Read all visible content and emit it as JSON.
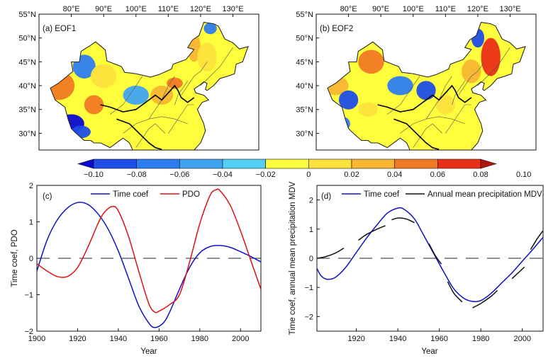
{
  "chart_data": [
    {
      "type": "heatmap",
      "panel_label": "(a)",
      "title": "EOF1",
      "x_ticks": [
        "80°E",
        "90°E",
        "100°E",
        "110°E",
        "120°E",
        "130°E"
      ],
      "y_ticks": [
        "55°N",
        "50°N",
        "45°N",
        "40°N",
        "35°N",
        "30°N"
      ],
      "xlim": [
        70,
        138
      ],
      "ylim": [
        26.5,
        55
      ],
      "blobs": [
        {
          "lon": 76,
          "lat": 40,
          "rlon": 5,
          "rlat": 3,
          "value": 0.08
        },
        {
          "lon": 87,
          "lat": 36,
          "rlon": 3,
          "rlat": 2,
          "value": 0.08
        },
        {
          "lon": 80,
          "lat": 32,
          "rlon": 4,
          "rlat": 2,
          "value": -0.1
        },
        {
          "lon": 83,
          "lat": 30.3,
          "rlon": 3,
          "rlat": 1.3,
          "value": -0.06
        },
        {
          "lon": 84,
          "lat": 44,
          "rlon": 3.5,
          "rlat": 2.5,
          "value": -0.04
        },
        {
          "lon": 90,
          "lat": 42,
          "rlon": 4,
          "rlat": 2.5,
          "value": 0.04
        },
        {
          "lon": 100,
          "lat": 38,
          "rlon": 4,
          "rlat": 2,
          "value": -0.02
        },
        {
          "lon": 108,
          "lat": 38,
          "rlon": 3.5,
          "rlat": 2,
          "value": 0.06
        },
        {
          "lon": 112,
          "lat": 40.5,
          "rlon": 2.5,
          "rlat": 1.2,
          "value": 0.08
        },
        {
          "lon": 118,
          "lat": 48,
          "rlon": 2,
          "rlat": 3,
          "value": 0.06
        },
        {
          "lon": 122,
          "lat": 46,
          "rlon": 3,
          "rlat": 3,
          "value": 0.04
        },
        {
          "lon": 98,
          "lat": 33,
          "rlon": 3,
          "rlat": 2,
          "value": 0.02
        },
        {
          "lon": 123,
          "lat": 52,
          "rlon": 2,
          "rlat": 1.2,
          "value": -0.04
        }
      ]
    },
    {
      "type": "heatmap",
      "panel_label": "(b)",
      "title": "EOF2",
      "x_ticks": [
        "80°E",
        "90°E",
        "100°E",
        "110°E",
        "120°E",
        "130°E"
      ],
      "y_ticks": [
        "55°N",
        "50°N",
        "45°N",
        "40°N",
        "35°N",
        "30°N"
      ],
      "xlim": [
        70,
        138
      ],
      "ylim": [
        26.5,
        55
      ],
      "blobs": [
        {
          "lon": 87,
          "lat": 45,
          "rlon": 4,
          "rlat": 2.5,
          "value": 0.08
        },
        {
          "lon": 76,
          "lat": 40,
          "rlon": 4,
          "rlat": 2,
          "value": 0.06
        },
        {
          "lon": 96,
          "lat": 40,
          "rlon": 4,
          "rlat": 2,
          "value": -0.04
        },
        {
          "lon": 104,
          "lat": 39,
          "rlon": 3,
          "rlat": 2,
          "value": -0.06
        },
        {
          "lon": 80,
          "lat": 37,
          "rlon": 3,
          "rlat": 2,
          "value": -0.06
        },
        {
          "lon": 78,
          "lat": 32,
          "rlon": 2.5,
          "rlat": 1.5,
          "value": -0.04
        },
        {
          "lon": 86,
          "lat": 35,
          "rlon": 3,
          "rlat": 1.5,
          "value": 0.04
        },
        {
          "lon": 124,
          "lat": 46,
          "rlon": 3,
          "rlat": 4,
          "value": 0.1
        },
        {
          "lon": 118,
          "lat": 43,
          "rlon": 3,
          "rlat": 2.5,
          "value": 0.06
        },
        {
          "lon": 120,
          "lat": 50,
          "rlon": 2,
          "rlat": 2,
          "value": -0.06
        },
        {
          "lon": 110,
          "lat": 36,
          "rlon": 3,
          "rlat": 2,
          "value": 0.04
        },
        {
          "lon": 100,
          "lat": 33,
          "rlon": 3,
          "rlat": 2,
          "value": 0.02
        }
      ]
    },
    {
      "type": "line",
      "panel_label": "(c)",
      "xlabel": "Year",
      "ylabel": "Time coef, PDO",
      "xlim": [
        1900,
        2010
      ],
      "ylim": [
        -2,
        2
      ],
      "x_ticks": [
        1900,
        1920,
        1940,
        1960,
        1980,
        2000
      ],
      "y_ticks": [
        -2,
        -1,
        0,
        1,
        2
      ],
      "reference_line": 0,
      "series": [
        {
          "name": "Time coef",
          "color": "#1010cc",
          "x": [
            1900,
            1905,
            1910,
            1915,
            1920,
            1925,
            1930,
            1935,
            1940,
            1945,
            1950,
            1955,
            1958,
            1962,
            1965,
            1970,
            1975,
            1980,
            1985,
            1990,
            1995,
            2000,
            2005,
            2010
          ],
          "y": [
            -0.35,
            0.5,
            1.05,
            1.38,
            1.53,
            1.48,
            1.22,
            0.8,
            0.2,
            -0.55,
            -1.3,
            -1.78,
            -1.9,
            -1.78,
            -1.5,
            -0.85,
            -0.25,
            0.15,
            0.32,
            0.35,
            0.3,
            0.18,
            0.05,
            -0.1
          ]
        },
        {
          "name": "PDO",
          "color": "#dd1111",
          "x": [
            1900,
            1905,
            1910,
            1915,
            1920,
            1925,
            1930,
            1933,
            1937,
            1940,
            1945,
            1950,
            1955,
            1958,
            1960,
            1965,
            1970,
            1975,
            1980,
            1985,
            1988,
            1990,
            1995,
            2000,
            2005,
            2010
          ],
          "y": [
            -0.15,
            -0.35,
            -0.5,
            -0.5,
            -0.25,
            0.3,
            0.95,
            1.25,
            1.42,
            1.3,
            0.6,
            -0.35,
            -1.25,
            -1.48,
            -1.45,
            -1.28,
            -1.0,
            -0.1,
            0.95,
            1.72,
            1.88,
            1.85,
            1.45,
            0.75,
            -0.05,
            -0.85
          ]
        }
      ],
      "legend": [
        "Time coef",
        "PDO"
      ]
    },
    {
      "type": "line",
      "panel_label": "(d)",
      "xlabel": "Year",
      "ylabel": "Time coef, annual mean precipitation MDV",
      "xlim": [
        1901,
        2010
      ],
      "ylim": [
        -2.5,
        2.5
      ],
      "x_ticks": [
        1920,
        1940,
        1960,
        1980,
        2000
      ],
      "y_ticks": [
        -2,
        -1,
        0,
        1,
        2
      ],
      "reference_line": 0,
      "series": [
        {
          "name": "Time coef",
          "color": "#1010cc",
          "x": [
            1901,
            1903,
            1906,
            1910,
            1915,
            1920,
            1925,
            1930,
            1935,
            1940,
            1943,
            1948,
            1952,
            1957,
            1962,
            1967,
            1972,
            1976,
            1980,
            1985,
            1990,
            1995,
            2000,
            2005,
            2010
          ],
          "y": [
            -0.35,
            -0.6,
            -0.72,
            -0.65,
            -0.3,
            0.2,
            0.7,
            1.15,
            1.55,
            1.72,
            1.68,
            1.35,
            0.85,
            0.2,
            -0.45,
            -1.05,
            -1.38,
            -1.48,
            -1.45,
            -1.2,
            -0.85,
            -0.5,
            -0.1,
            0.3,
            0.72
          ]
        },
        {
          "name": "Annual mean precipitation MDV",
          "color": "#111111",
          "segments": [
            {
              "x": [
                1901,
                1905,
                1910,
                1914
              ],
              "y": [
                0.0,
                0.05,
                0.18,
                0.35
              ]
            },
            {
              "x": [
                1921,
                1925,
                1930,
                1934
              ],
              "y": [
                0.62,
                0.82,
                1.0,
                1.12
              ]
            },
            {
              "x": [
                1937,
                1940,
                1944,
                1948
              ],
              "y": [
                1.32,
                1.38,
                1.35,
                1.22
              ]
            },
            {
              "x": [
                1955,
                1958,
                1961
              ],
              "y": [
                0.5,
                0.1,
                -0.2
              ]
            },
            {
              "x": [
                1964,
                1967,
                1971
              ],
              "y": [
                -0.8,
                -1.2,
                -1.5
              ]
            },
            {
              "x": [
                1976,
                1980,
                1985,
                1988
              ],
              "y": [
                -1.7,
                -1.55,
                -1.3,
                -1.1
              ]
            },
            {
              "x": [
                1995,
                1998,
                2001
              ],
              "y": [
                -0.7,
                -0.5,
                -0.3
              ]
            },
            {
              "x": [
                2004,
                2007,
                2010
              ],
              "y": [
                0.3,
                0.65,
                0.95
              ]
            }
          ]
        }
      ],
      "legend": [
        "Time coef",
        "Annual mean precipitation MDV"
      ]
    }
  ],
  "colorbar": {
    "labels": [
      "-0.10",
      "-0.08",
      "-0.06",
      "-0.04",
      "-0.02",
      "0",
      "0.02",
      "0.04",
      "0.06",
      "0.08",
      "0.10"
    ],
    "colors": [
      "#0a0ad2",
      "#1f4de8",
      "#2d7df0",
      "#3fa4f2",
      "#54d0f7",
      "#fefe3c",
      "#fee13c",
      "#f8b632",
      "#f07a23",
      "#ea2f18",
      "#b2140f"
    ]
  }
}
